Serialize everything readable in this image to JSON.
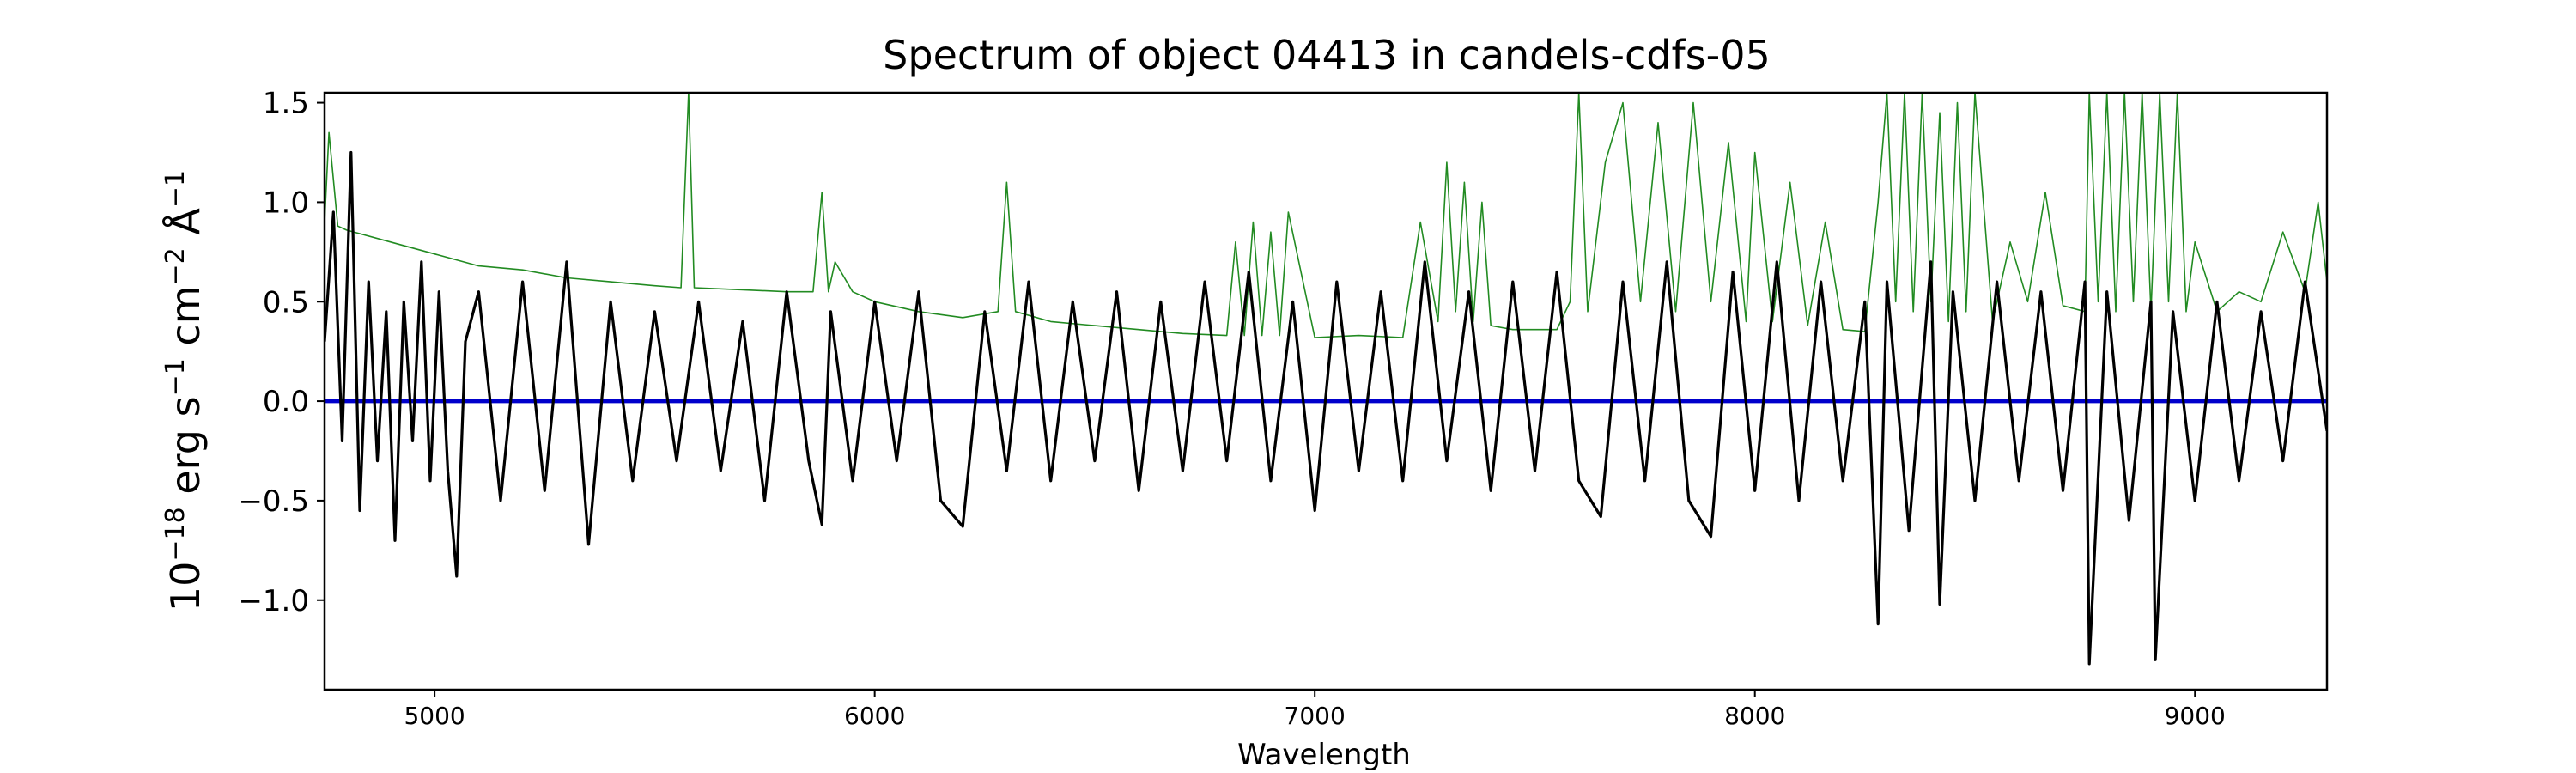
{
  "chart_data": {
    "type": "line",
    "title": "Spectrum of object 04413 in candels-cdfs-05",
    "xlabel": "Wavelength",
    "ylabel": {
      "prefix": "10",
      "prefix_exp": "−18",
      "text": " erg s",
      "s_exp": "−1",
      "cm": " cm",
      "cm_exp": "−2",
      "ang": " Å",
      "ang_exp": "−1"
    },
    "xlim": [
      4750,
      9300
    ],
    "ylim": [
      -1.45,
      1.55
    ],
    "grid": false,
    "x_ticks": [
      5000,
      6000,
      7000,
      8000,
      9000
    ],
    "x_tick_labels": [
      "5000",
      "6000",
      "7000",
      "8000",
      "9000"
    ],
    "y_ticks": [
      -1.0,
      -0.5,
      0.0,
      0.5,
      1.0,
      1.5
    ],
    "y_tick_labels": [
      "−1.0",
      "−0.5",
      "0.0",
      "0.5",
      "1.0",
      "1.5"
    ],
    "series": [
      {
        "role": "flux",
        "color": "#000000",
        "x": [
          4750,
          4770,
          4790,
          4810,
          4830,
          4850,
          4870,
          4890,
          4910,
          4930,
          4950,
          4970,
          4990,
          5010,
          5030,
          5050,
          5070,
          5100,
          5150,
          5200,
          5250,
          5300,
          5350,
          5400,
          5450,
          5500,
          5550,
          5600,
          5650,
          5700,
          5750,
          5800,
          5850,
          5880,
          5900,
          5950,
          6000,
          6050,
          6100,
          6150,
          6200,
          6250,
          6300,
          6350,
          6400,
          6450,
          6500,
          6550,
          6600,
          6650,
          6700,
          6750,
          6800,
          6850,
          6900,
          6950,
          7000,
          7050,
          7100,
          7150,
          7200,
          7250,
          7300,
          7350,
          7400,
          7450,
          7500,
          7550,
          7600,
          7650,
          7700,
          7750,
          7800,
          7850,
          7900,
          7950,
          8000,
          8050,
          8100,
          8150,
          8200,
          8250,
          8280,
          8300,
          8350,
          8400,
          8420,
          8450,
          8500,
          8550,
          8600,
          8650,
          8700,
          8750,
          8760,
          8800,
          8850,
          8900,
          8910,
          8950,
          9000,
          9050,
          9100,
          9150,
          9200,
          9250,
          9300
        ],
        "y": [
          0.3,
          0.95,
          -0.2,
          1.25,
          -0.55,
          0.6,
          -0.3,
          0.45,
          -0.7,
          0.5,
          -0.2,
          0.7,
          -0.4,
          0.55,
          -0.35,
          -0.88,
          0.3,
          0.55,
          -0.5,
          0.6,
          -0.45,
          0.7,
          -0.72,
          0.5,
          -0.4,
          0.45,
          -0.3,
          0.5,
          -0.35,
          0.4,
          -0.5,
          0.55,
          -0.3,
          -0.62,
          0.45,
          -0.4,
          0.5,
          -0.3,
          0.55,
          -0.5,
          -0.63,
          0.45,
          -0.35,
          0.6,
          -0.4,
          0.5,
          -0.3,
          0.55,
          -0.45,
          0.5,
          -0.35,
          0.6,
          -0.3,
          0.65,
          -0.4,
          0.5,
          -0.55,
          0.6,
          -0.35,
          0.55,
          -0.4,
          0.7,
          -0.3,
          0.55,
          -0.45,
          0.6,
          -0.35,
          0.65,
          -0.4,
          -0.58,
          0.6,
          -0.4,
          0.7,
          -0.5,
          -0.68,
          0.65,
          -0.45,
          0.7,
          -0.5,
          0.6,
          -0.4,
          0.5,
          -1.12,
          0.6,
          -0.65,
          0.7,
          -1.02,
          0.55,
          -0.5,
          0.6,
          -0.4,
          0.55,
          -0.45,
          0.6,
          -1.32,
          0.55,
          -0.6,
          0.5,
          -1.3,
          0.45,
          -0.5,
          0.5,
          -0.4,
          0.45,
          -0.3,
          0.6,
          -0.15
        ]
      },
      {
        "role": "model",
        "color": "#0000cc",
        "x": [
          4750,
          9300
        ],
        "y": [
          0.0,
          0.0
        ]
      },
      {
        "role": "sky",
        "color": "#228b22",
        "x": [
          4750,
          4760,
          4780,
          4800,
          4900,
          5000,
          5100,
          5200,
          5300,
          5400,
          5500,
          5560,
          5577,
          5590,
          5700,
          5800,
          5860,
          5880,
          5895,
          5910,
          5950,
          6000,
          6100,
          6200,
          6280,
          6300,
          6320,
          6400,
          6500,
          6600,
          6700,
          6800,
          6820,
          6840,
          6860,
          6880,
          6900,
          6920,
          6940,
          7000,
          7100,
          7200,
          7240,
          7280,
          7300,
          7320,
          7340,
          7360,
          7380,
          7400,
          7450,
          7500,
          7550,
          7580,
          7600,
          7620,
          7660,
          7700,
          7740,
          7780,
          7820,
          7860,
          7900,
          7940,
          7980,
          8000,
          8040,
          8080,
          8120,
          8160,
          8200,
          8250,
          8280,
          8300,
          8320,
          8340,
          8360,
          8380,
          8400,
          8420,
          8440,
          8460,
          8480,
          8500,
          8540,
          8580,
          8620,
          8660,
          8700,
          8750,
          8760,
          8780,
          8800,
          8820,
          8840,
          8860,
          8880,
          8900,
          8920,
          8940,
          8960,
          8980,
          9000,
          9050,
          9100,
          9150,
          9200,
          9250,
          9280,
          9300
        ],
        "y": [
          0.9,
          1.35,
          0.88,
          0.86,
          0.8,
          0.74,
          0.68,
          0.66,
          0.62,
          0.6,
          0.58,
          0.57,
          1.55,
          0.57,
          0.56,
          0.55,
          0.55,
          1.05,
          0.55,
          0.7,
          0.55,
          0.5,
          0.45,
          0.42,
          0.45,
          1.1,
          0.45,
          0.4,
          0.38,
          0.36,
          0.34,
          0.33,
          0.8,
          0.33,
          0.9,
          0.33,
          0.85,
          0.33,
          0.95,
          0.32,
          0.33,
          0.32,
          0.9,
          0.4,
          1.2,
          0.45,
          1.1,
          0.4,
          1.0,
          0.38,
          0.36,
          0.36,
          0.36,
          0.5,
          1.55,
          0.45,
          1.2,
          1.5,
          0.5,
          1.4,
          0.45,
          1.5,
          0.5,
          1.3,
          0.4,
          1.25,
          0.4,
          1.1,
          0.38,
          0.9,
          0.36,
          0.35,
          1.0,
          1.55,
          0.5,
          1.55,
          0.45,
          1.55,
          0.5,
          1.45,
          0.4,
          1.5,
          0.45,
          1.55,
          0.4,
          0.8,
          0.5,
          1.05,
          0.48,
          0.45,
          1.55,
          0.5,
          1.55,
          0.45,
          1.55,
          0.5,
          1.55,
          0.45,
          1.55,
          0.5,
          1.55,
          0.45,
          0.8,
          0.45,
          0.55,
          0.5,
          0.85,
          0.55,
          1.0,
          0.6
        ]
      }
    ]
  }
}
